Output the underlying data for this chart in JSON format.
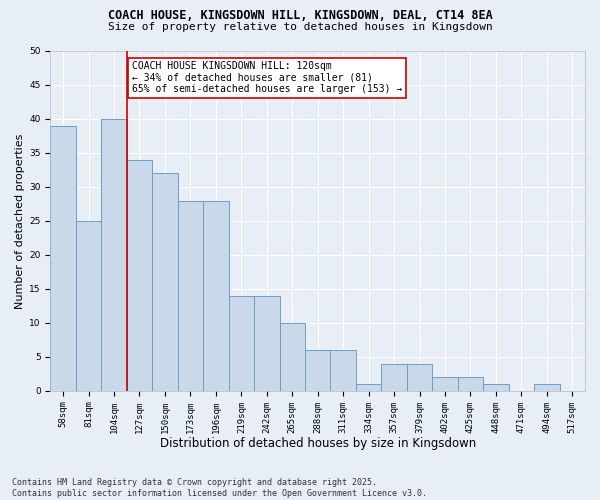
{
  "title1": "COACH HOUSE, KINGSDOWN HILL, KINGSDOWN, DEAL, CT14 8EA",
  "title2": "Size of property relative to detached houses in Kingsdown",
  "xlabel": "Distribution of detached houses by size in Kingsdown",
  "ylabel": "Number of detached properties",
  "categories": [
    "58sqm",
    "81sqm",
    "104sqm",
    "127sqm",
    "150sqm",
    "173sqm",
    "196sqm",
    "219sqm",
    "242sqm",
    "265sqm",
    "288sqm",
    "311sqm",
    "334sqm",
    "357sqm",
    "379sqm",
    "402sqm",
    "425sqm",
    "448sqm",
    "471sqm",
    "494sqm",
    "517sqm"
  ],
  "values": [
    39,
    25,
    40,
    34,
    32,
    28,
    28,
    14,
    14,
    10,
    6,
    6,
    1,
    4,
    4,
    2,
    2,
    1,
    0,
    1,
    0
  ],
  "bar_color": "#c9d9ea",
  "bar_edge_color": "#6b9ec8",
  "vline_color": "#cc0000",
  "vline_x": 2.5,
  "annotation_text": "COACH HOUSE KINGSDOWN HILL: 120sqm\n← 34% of detached houses are smaller (81)\n65% of semi-detached houses are larger (153) →",
  "annotation_box_color": "#ffffff",
  "annotation_border_color": "#cc0000",
  "ylim": [
    0,
    50
  ],
  "yticks": [
    0,
    5,
    10,
    15,
    20,
    25,
    30,
    35,
    40,
    45,
    50
  ],
  "footer1": "Contains HM Land Registry data © Crown copyright and database right 2025.",
  "footer2": "Contains public sector information licensed under the Open Government Licence v3.0.",
  "bg_color": "#e8eef5",
  "grid_color": "#ffffff",
  "title1_fontsize": 8.5,
  "title2_fontsize": 8.0,
  "ylabel_fontsize": 8.0,
  "xlabel_fontsize": 8.5,
  "tick_fontsize": 6.5,
  "annotation_fontsize": 7.0,
  "footer_fontsize": 6.0
}
